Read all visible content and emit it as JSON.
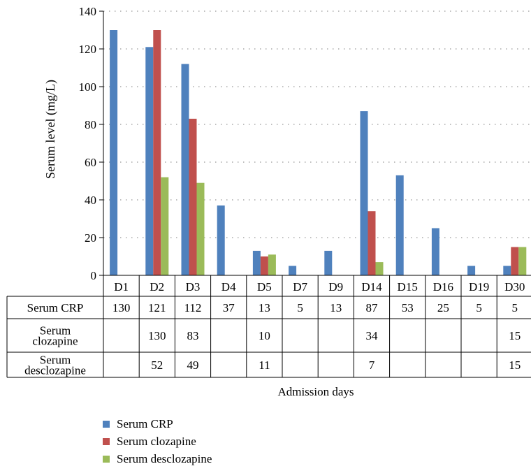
{
  "chart_data": {
    "type": "bar",
    "title": "",
    "xlabel": "Admission days",
    "ylabel": "Serum level (mg/L)",
    "ylim": [
      0,
      140
    ],
    "yticks": [
      0,
      20,
      40,
      60,
      80,
      100,
      120,
      140
    ],
    "grid": "horizontal dotted",
    "legend_placement": "bottom",
    "categories": [
      "D1",
      "D2",
      "D3",
      "D4",
      "D5",
      "D7",
      "D9",
      "D14",
      "D15",
      "D16",
      "D19",
      "D30"
    ],
    "series": [
      {
        "name": "Serum CRP",
        "table_label": [
          "Serum CRP"
        ],
        "color": "#4f81bd",
        "values": [
          130,
          121,
          112,
          37,
          13,
          5,
          13,
          87,
          53,
          25,
          5,
          5
        ]
      },
      {
        "name": "Serum clozapine",
        "table_label": [
          "Serum",
          "clozapine"
        ],
        "color": "#c0504d",
        "values": [
          null,
          130,
          83,
          null,
          10,
          null,
          null,
          34,
          null,
          null,
          null,
          15
        ]
      },
      {
        "name": "Serum desclozapine",
        "table_label": [
          "Serum",
          "desclozapine"
        ],
        "color": "#9bbb59",
        "values": [
          null,
          52,
          49,
          null,
          11,
          null,
          null,
          7,
          null,
          null,
          null,
          15
        ]
      }
    ]
  }
}
